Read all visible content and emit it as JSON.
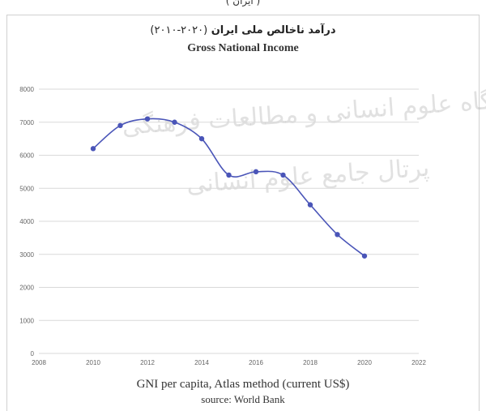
{
  "header": {
    "top_cut_text": "( ایران )",
    "title_fa": "درآمد ناخالص ملی ایران",
    "title_fa_range": "(۲۰۲۰-۲۰۱۰)",
    "title_en": "Gross National Income"
  },
  "watermark": {
    "line1": "پژوهشگاه علوم انسانی و مطالعات فرهنگی",
    "line2": "پرتال جامع علوم انسانی"
  },
  "caption": {
    "line1": "GNI per capita, Atlas method (current US$)",
    "line2": "source: World Bank"
  },
  "colors": {
    "line": "#4a55b8",
    "marker": "#4a55b8",
    "grid": "#d9d9d9",
    "axis_text": "#666666"
  },
  "chart_data": {
    "type": "line",
    "title": "Gross National Income",
    "xlabel": "",
    "ylabel": "",
    "xlim": [
      2008,
      2022
    ],
    "ylim": [
      0,
      8000
    ],
    "xticks": [
      2008,
      2010,
      2012,
      2014,
      2016,
      2018,
      2020,
      2022
    ],
    "yticks": [
      0,
      1000,
      2000,
      3000,
      4000,
      5000,
      6000,
      7000,
      8000
    ],
    "grid": true,
    "legend": "none",
    "smooth": true,
    "series": [
      {
        "x": [
          2010,
          2011,
          2012,
          2013,
          2014,
          2015,
          2016,
          2017,
          2018,
          2019,
          2020
        ],
        "y": [
          6200,
          6900,
          7100,
          7000,
          6500,
          5400,
          5500,
          5400,
          4500,
          3600,
          2950
        ]
      }
    ]
  }
}
